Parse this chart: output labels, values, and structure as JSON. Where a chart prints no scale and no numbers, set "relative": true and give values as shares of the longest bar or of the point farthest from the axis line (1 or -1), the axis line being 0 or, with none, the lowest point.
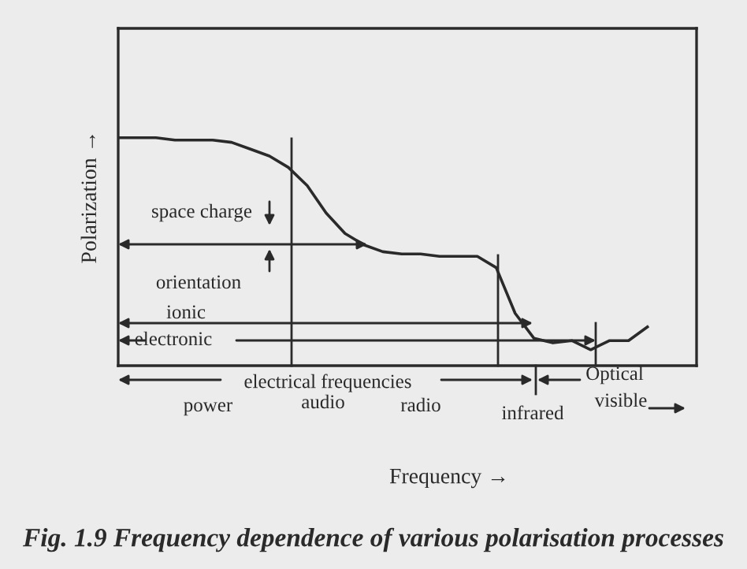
{
  "chart_data": {
    "type": "line",
    "relative": true,
    "marker": "none",
    "line_style": "solid",
    "xlabel": "Frequency →",
    "ylabel": "Polarization →",
    "categories": [
      null,
      null,
      null,
      null,
      null,
      null,
      null,
      null,
      null,
      null,
      null,
      null,
      null,
      null,
      null,
      null,
      null,
      null,
      null,
      null,
      null,
      null,
      null,
      null,
      null,
      null,
      null,
      null,
      null,
      null,
      null
    ],
    "series": [
      {
        "color": "#2a2a2a",
        "values": [
          1.0,
          1.0,
          1.0,
          0.99,
          0.99,
          0.99,
          0.98,
          0.95,
          0.92,
          0.87,
          0.79,
          0.67,
          0.58,
          0.53,
          0.5,
          0.49,
          0.49,
          0.48,
          0.48,
          0.48,
          0.43,
          0.23,
          0.12,
          0.1,
          0.11,
          0.07,
          0.11,
          0.11,
          0.17,
          null,
          null
        ]
      }
    ],
    "annotations": [
      "space charge",
      "orientation",
      "ionic",
      "electronic",
      "electrical frequencies",
      "Optical",
      "power",
      "audio",
      "radio",
      "infrared",
      "visible",
      "Fig. 1.9 Frequency dependence of various polarisation processes"
    ]
  }
}
